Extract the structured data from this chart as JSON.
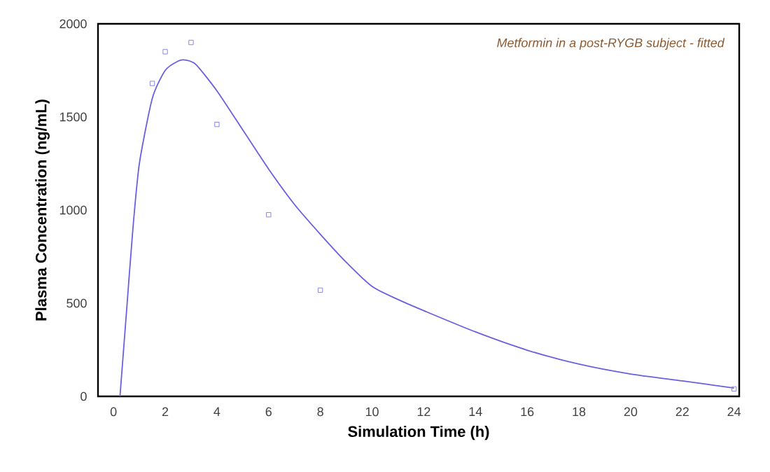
{
  "chart_data": {
    "type": "line",
    "xlabel": "Simulation Time (h)",
    "ylabel": "Plasma Concentration (ng/mL)",
    "annotations": [
      "*Metformin in a post-RYGB subject - fitted*"
    ],
    "xlim": [
      -0.6,
      24.2
    ],
    "ylim": [
      0,
      2000
    ],
    "xticks": [
      0,
      2,
      4,
      6,
      8,
      10,
      12,
      14,
      16,
      18,
      20,
      22,
      24
    ],
    "yticks": [
      0,
      500,
      1000,
      1500,
      2000
    ],
    "grid": false,
    "series": [
      {
        "type": "scatter",
        "marker": "square",
        "color": "#8888e8",
        "x": [
          1.5,
          2,
          3,
          4,
          6,
          8,
          24
        ],
        "values": [
          1680,
          1850,
          1900,
          1460,
          975,
          570,
          40
        ]
      },
      {
        "marker": "none",
        "line_style": "solid",
        "color": "#6a5fe0",
        "x": [
          0.25,
          0.5,
          0.75,
          1,
          1.5,
          2,
          2.5,
          2.8,
          3.2,
          4,
          5,
          6,
          7,
          8,
          9,
          10,
          11,
          12,
          14,
          16,
          18,
          20,
          22,
          24
        ],
        "values": [
          0,
          450,
          900,
          1250,
          1600,
          1750,
          1800,
          1805,
          1780,
          1640,
          1430,
          1220,
          1030,
          870,
          720,
          590,
          520,
          460,
          346,
          248,
          173,
          120,
          83,
          45
        ]
      }
    ]
  }
}
